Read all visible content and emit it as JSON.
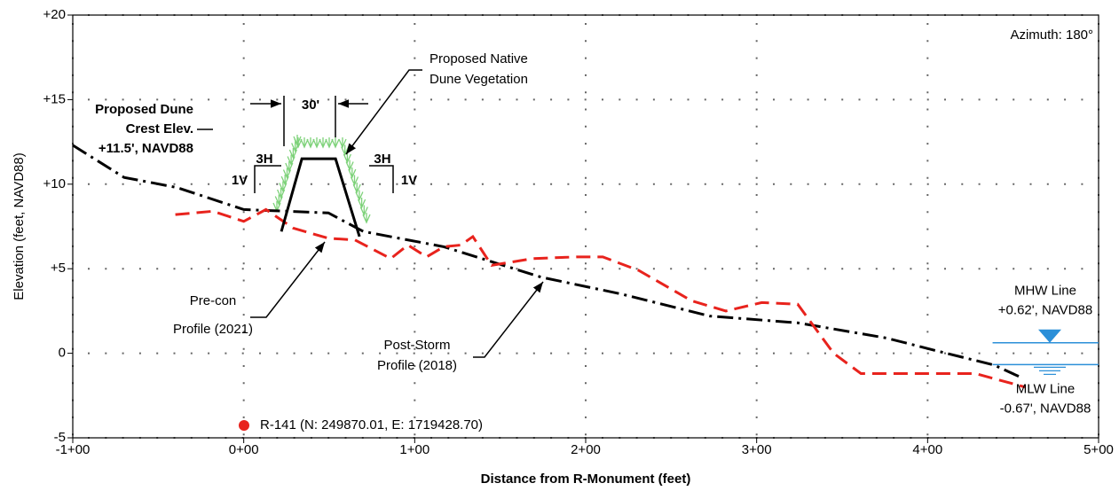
{
  "chart_data": {
    "type": "line",
    "xlabel": "Distance from R-Monument (feet)",
    "ylabel": "Elevation (feet, NAVD88)",
    "xlim": [
      -100,
      500
    ],
    "xticks": [
      {
        "value": -100,
        "label": "-1+00"
      },
      {
        "value": 0,
        "label": "0+00"
      },
      {
        "value": 100,
        "label": "1+00"
      },
      {
        "value": 200,
        "label": "2+00"
      },
      {
        "value": 300,
        "label": "3+00"
      },
      {
        "value": 400,
        "label": "4+00"
      },
      {
        "value": 500,
        "label": "5+00"
      }
    ],
    "ylim": [
      -5,
      20
    ],
    "yticks": [
      -5,
      0,
      {
        "value": 5,
        "label": "+5"
      },
      {
        "value": 10,
        "label": "+10"
      },
      {
        "value": 15,
        "label": "+15"
      },
      {
        "value": 20,
        "label": "+20"
      }
    ],
    "grid": true,
    "series": [
      {
        "color": "#000000",
        "line_style": "dash-dot",
        "x": [
          -100,
          -70,
          -39,
          0,
          49.5,
          70,
          117,
          174,
          221,
          272.6,
          324,
          376,
          407,
          439,
          454
        ],
        "values": [
          12.3,
          10.4,
          9.8,
          8.5,
          8.3,
          7.2,
          6.3,
          4.5,
          3.5,
          2.2,
          1.8,
          0.9,
          0.1,
          -0.7,
          -1.4
        ]
      },
      {
        "color": "#e8231d",
        "line_style": "dashed",
        "x": [
          -40,
          -18,
          0,
          13,
          29,
          49.5,
          65,
          86,
          96,
          107,
          117,
          127,
          134,
          145,
          169,
          195,
          210,
          231,
          262,
          282,
          303,
          324,
          345,
          361,
          428,
          457
        ],
        "values": [
          8.2,
          8.4,
          7.8,
          8.5,
          7.4,
          6.8,
          6.7,
          5.6,
          6.4,
          5.7,
          6.3,
          6.4,
          6.9,
          5.2,
          5.6,
          5.7,
          5.7,
          4.9,
          3.1,
          2.5,
          3.0,
          2.9,
          0.0,
          -1.2,
          -1.2,
          -2.0
        ]
      },
      {
        "color": "#000000",
        "line_style": "solid",
        "x": [
          22,
          34,
          53.7,
          67.7
        ],
        "values": [
          7.2,
          11.5,
          11.5,
          6.9
        ]
      }
    ],
    "reference_lines": [
      {
        "name": "MHW Line",
        "value": 0.62,
        "value_label": "+0.62', NAVD88",
        "color": "#2b8fd8",
        "from": 438
      },
      {
        "name": "MLW Line",
        "value": -0.67,
        "value_label": "-0.67', NAVD88",
        "color": "#2b8fd8",
        "from": 438
      }
    ],
    "annotations": [
      [
        "Azimuth: 180°"
      ],
      [
        "Proposed Dune",
        "Crest Elev.",
        "+11.5', NAVD88"
      ],
      [
        "Proposed Native",
        "Dune Vegetation"
      ],
      [
        "30'"
      ],
      [
        "3H"
      ],
      [
        "1V"
      ],
      [
        "3H"
      ],
      [
        "1V"
      ],
      [
        "Pre-con",
        "Profile (2021)"
      ],
      [
        "Post-Storm",
        "Profile (2018)"
      ],
      [
        "R-141 (N: 249870.01, E: 1719428.70)"
      ]
    ]
  }
}
